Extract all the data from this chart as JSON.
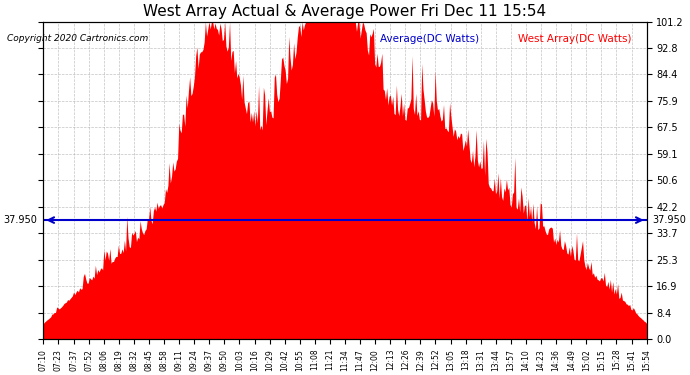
{
  "title": "West Array Actual & Average Power Fri Dec 11 15:54",
  "copyright": "Copyright 2020 Cartronics.com",
  "legend_avg": "Average(DC Watts)",
  "legend_west": "West Array(DC Watts)",
  "avg_value": 37.95,
  "avg_label": "37.950",
  "yticks": [
    0.0,
    8.4,
    16.9,
    25.3,
    33.7,
    42.2,
    50.6,
    59.1,
    67.5,
    75.9,
    84.4,
    92.8,
    101.2
  ],
  "xtick_labels": [
    "07:10",
    "07:23",
    "07:37",
    "07:52",
    "08:06",
    "08:19",
    "08:32",
    "08:45",
    "08:58",
    "09:11",
    "09:24",
    "09:37",
    "09:50",
    "10:03",
    "10:16",
    "10:29",
    "10:42",
    "10:55",
    "11:08",
    "11:21",
    "11:34",
    "11:47",
    "12:00",
    "12:13",
    "12:26",
    "12:39",
    "12:52",
    "13:05",
    "13:18",
    "13:31",
    "13:44",
    "13:57",
    "14:10",
    "14:23",
    "14:36",
    "14:49",
    "15:02",
    "15:15",
    "15:28",
    "15:41",
    "15:54"
  ],
  "bar_color": "#ff0000",
  "avg_line_color": "#0000cc",
  "grid_color": "#aaaaaa",
  "background_color": "#ffffff",
  "title_color": "#000000",
  "copyright_color": "#000000",
  "legend_avg_color": "#0000cc",
  "legend_west_color": "#ff0000"
}
